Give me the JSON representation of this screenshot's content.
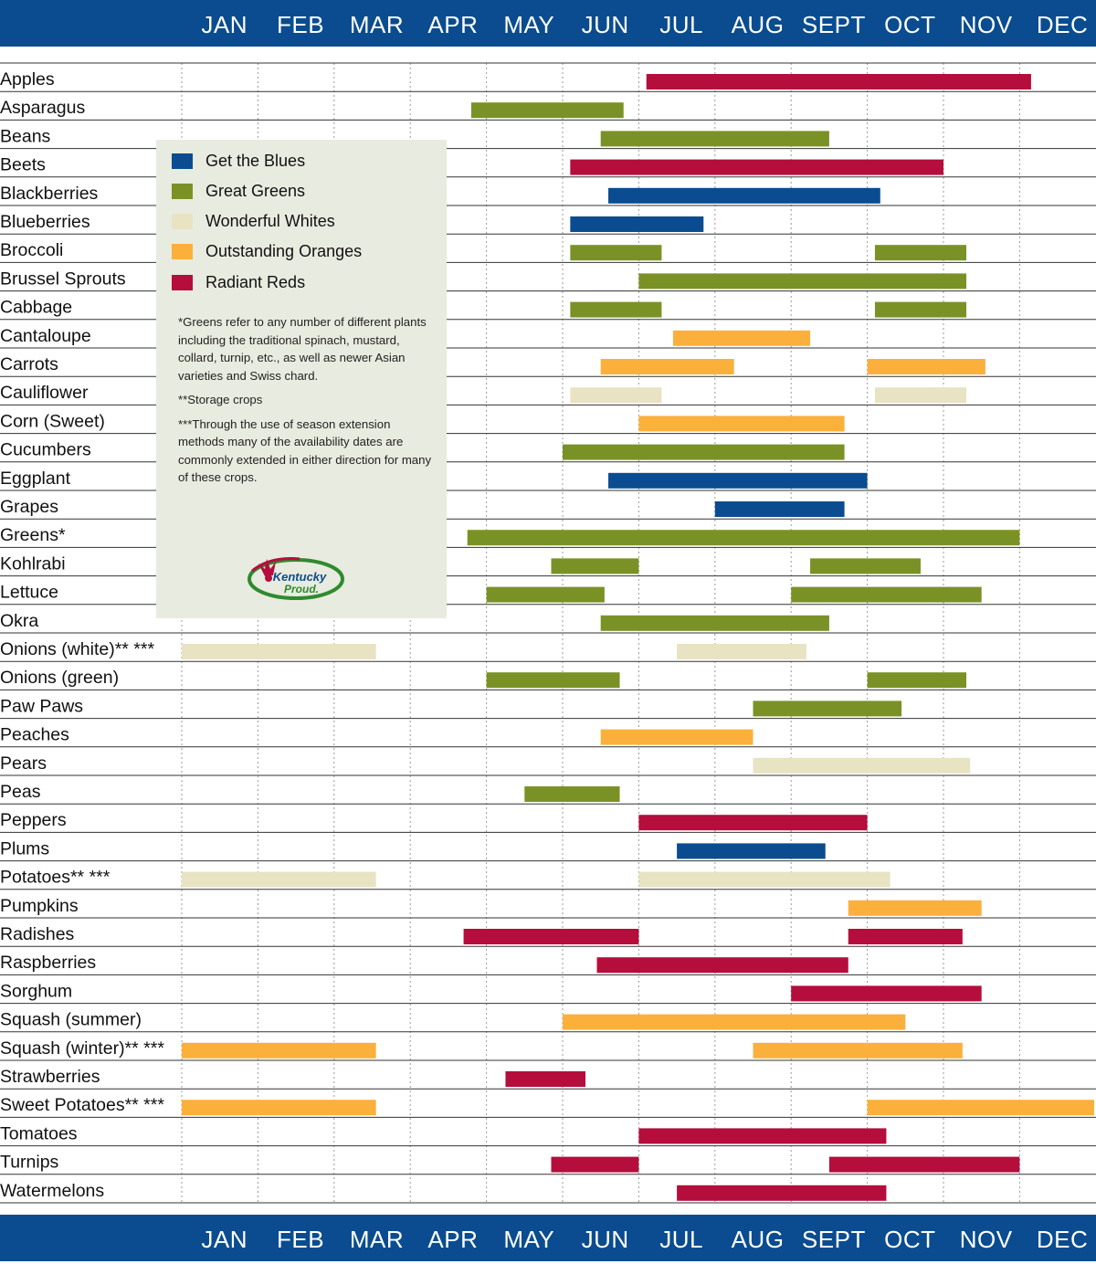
{
  "months": [
    "JAN",
    "FEB",
    "MAR",
    "APR",
    "MAY",
    "JUN",
    "JUL",
    "AUG",
    "SEPT",
    "OCT",
    "NOV",
    "DEC"
  ],
  "colors": {
    "header_bg": "#0a4c8f",
    "blue": "#0a4c8f",
    "green": "#7a9225",
    "white": "#e8e3c2",
    "orange": "#fbb03b",
    "red": "#b50d3c",
    "legend_bg": "#e8ebdf",
    "rule": "#333333",
    "grid": "#9a9a9a"
  },
  "legend": {
    "items": [
      {
        "label": "Get the Blues",
        "color": "blue"
      },
      {
        "label": "Great Greens",
        "color": "green"
      },
      {
        "label": "Wonderful Whites",
        "color": "white"
      },
      {
        "label": "Outstanding Oranges",
        "color": "orange"
      },
      {
        "label": "Radiant Reds",
        "color": "red"
      }
    ],
    "note_greens": "*Greens refer to any number of different plants including the traditional spinach, mustard, collard, turnip, etc., as well as newer Asian varieties and Swiss chard.",
    "note_storage": "**Storage crops",
    "note_season": "***Through the use of season extension methods many of the availability dates are commonly extended in either direction for many of these crops.",
    "logo_text": [
      "Kentucky",
      "Proud."
    ]
  },
  "chart_data": {
    "type": "gantt",
    "x_unit": "month (1 = start of Jan, 13 = end of Dec)",
    "x_range": [
      1,
      13
    ],
    "categories": [
      "JAN",
      "FEB",
      "MAR",
      "APR",
      "MAY",
      "JUN",
      "JUL",
      "AUG",
      "SEPT",
      "OCT",
      "NOV",
      "DEC"
    ],
    "grid": true,
    "legend": "left",
    "rows": [
      {
        "label": "Apples",
        "color": "red",
        "ranges": [
          [
            7.1,
            12.15
          ]
        ]
      },
      {
        "label": "Asparagus",
        "color": "green",
        "ranges": [
          [
            4.8,
            6.8
          ]
        ]
      },
      {
        "label": "Beans",
        "color": "green",
        "ranges": [
          [
            6.5,
            9.5
          ]
        ]
      },
      {
        "label": "Beets",
        "color": "red",
        "ranges": [
          [
            6.1,
            11.0
          ]
        ]
      },
      {
        "label": "Blackberries",
        "color": "blue",
        "ranges": [
          [
            6.6,
            10.17
          ]
        ]
      },
      {
        "label": "Blueberries",
        "color": "blue",
        "ranges": [
          [
            6.1,
            7.85
          ]
        ]
      },
      {
        "label": "Broccoli",
        "color": "green",
        "ranges": [
          [
            6.1,
            7.3
          ],
          [
            10.1,
            11.3
          ]
        ]
      },
      {
        "label": "Brussel Sprouts",
        "color": "green",
        "ranges": [
          [
            7.0,
            11.3
          ]
        ]
      },
      {
        "label": "Cabbage",
        "color": "green",
        "ranges": [
          [
            6.1,
            7.3
          ],
          [
            10.1,
            11.3
          ]
        ]
      },
      {
        "label": "Cantaloupe",
        "color": "orange",
        "ranges": [
          [
            7.45,
            9.25
          ]
        ]
      },
      {
        "label": "Carrots",
        "color": "orange",
        "ranges": [
          [
            6.5,
            8.25
          ],
          [
            10.0,
            11.55
          ]
        ]
      },
      {
        "label": "Cauliflower",
        "color": "white",
        "ranges": [
          [
            6.1,
            7.3
          ],
          [
            10.1,
            11.3
          ]
        ]
      },
      {
        "label": "Corn (Sweet)",
        "color": "orange",
        "ranges": [
          [
            7.0,
            9.7
          ]
        ]
      },
      {
        "label": "Cucumbers",
        "color": "green",
        "ranges": [
          [
            6.0,
            9.7
          ]
        ]
      },
      {
        "label": "Eggplant",
        "color": "blue",
        "ranges": [
          [
            6.6,
            10.0
          ]
        ]
      },
      {
        "label": "Grapes",
        "color": "blue",
        "ranges": [
          [
            8.0,
            9.7
          ]
        ]
      },
      {
        "label": "Greens*",
        "color": "green",
        "ranges": [
          [
            4.75,
            12.0
          ]
        ]
      },
      {
        "label": "Kohlrabi",
        "color": "green",
        "ranges": [
          [
            5.85,
            7.0
          ],
          [
            9.25,
            10.7
          ]
        ]
      },
      {
        "label": "Lettuce",
        "color": "green",
        "ranges": [
          [
            5.0,
            6.55
          ],
          [
            9.0,
            11.5
          ]
        ]
      },
      {
        "label": "Okra",
        "color": "green",
        "ranges": [
          [
            6.5,
            9.5
          ]
        ]
      },
      {
        "label": "Onions (white)** ***",
        "color": "white",
        "ranges": [
          [
            1.0,
            3.55
          ],
          [
            7.5,
            9.2
          ]
        ]
      },
      {
        "label": "Onions (green)",
        "color": "green",
        "ranges": [
          [
            5.0,
            6.75
          ],
          [
            10.0,
            11.3
          ]
        ]
      },
      {
        "label": "Paw Paws",
        "color": "green",
        "ranges": [
          [
            8.5,
            10.45
          ]
        ]
      },
      {
        "label": "Peaches",
        "color": "orange",
        "ranges": [
          [
            6.5,
            8.5
          ]
        ]
      },
      {
        "label": "Pears",
        "color": "white",
        "ranges": [
          [
            8.5,
            11.35
          ]
        ]
      },
      {
        "label": "Peas",
        "color": "green",
        "ranges": [
          [
            5.5,
            6.75
          ]
        ]
      },
      {
        "label": "Peppers",
        "color": "red",
        "ranges": [
          [
            7.0,
            10.0
          ]
        ]
      },
      {
        "label": "Plums",
        "color": "blue",
        "ranges": [
          [
            7.5,
            9.45
          ]
        ]
      },
      {
        "label": "Potatoes** ***",
        "color": "white",
        "ranges": [
          [
            1.0,
            3.55
          ],
          [
            7.0,
            10.3
          ]
        ]
      },
      {
        "label": "Pumpkins",
        "color": "orange",
        "ranges": [
          [
            9.75,
            11.5
          ]
        ]
      },
      {
        "label": "Radishes",
        "color": "red",
        "ranges": [
          [
            4.7,
            7.0
          ],
          [
            9.75,
            11.25
          ]
        ]
      },
      {
        "label": "Raspberries",
        "color": "red",
        "ranges": [
          [
            6.45,
            9.75
          ]
        ]
      },
      {
        "label": "Sorghum",
        "color": "red",
        "ranges": [
          [
            9.0,
            11.5
          ]
        ]
      },
      {
        "label": "Squash (summer)",
        "color": "orange",
        "ranges": [
          [
            6.0,
            10.5
          ]
        ]
      },
      {
        "label": "Squash (winter)** ***",
        "color": "orange",
        "ranges": [
          [
            1.0,
            3.55
          ],
          [
            8.5,
            11.25
          ]
        ]
      },
      {
        "label": "Strawberries",
        "color": "red",
        "ranges": [
          [
            5.25,
            6.3
          ]
        ]
      },
      {
        "label": "Sweet Potatoes** ***",
        "color": "orange",
        "ranges": [
          [
            1.0,
            3.55
          ],
          [
            10.0,
            13.0
          ]
        ]
      },
      {
        "label": "Tomatoes",
        "color": "red",
        "ranges": [
          [
            7.0,
            10.25
          ]
        ]
      },
      {
        "label": "Turnips",
        "color": "red",
        "ranges": [
          [
            5.85,
            7.0
          ],
          [
            9.5,
            12.0
          ]
        ]
      },
      {
        "label": "Watermelons",
        "color": "red",
        "ranges": [
          [
            7.5,
            10.25
          ]
        ]
      }
    ]
  }
}
